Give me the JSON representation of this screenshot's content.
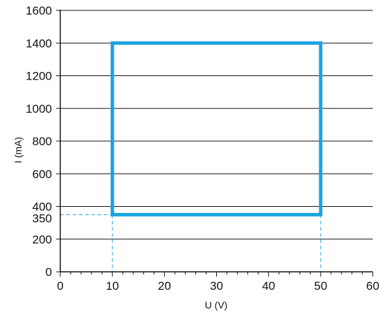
{
  "chart_data": {
    "type": "line",
    "xlabel": "U (V)",
    "ylabel": "I (mA)",
    "xlim": [
      0,
      60
    ],
    "ylim": [
      0,
      1600
    ],
    "x_ticks": [
      0,
      10,
      20,
      30,
      40,
      50,
      60
    ],
    "x_minor_step": 2,
    "y_ticks": [
      0,
      200,
      400,
      600,
      800,
      1000,
      1200,
      1400,
      1600
    ],
    "y_gridlines": [
      200,
      400,
      600,
      800,
      1000,
      1200,
      1400,
      1600
    ],
    "grid": "horizontal",
    "highlight_x": [
      10,
      50
    ],
    "highlight_y": [
      350,
      1400
    ],
    "series": [
      {
        "closed": true,
        "color": "#1aa3e0",
        "x": [
          10,
          50,
          50,
          10
        ],
        "y": [
          350,
          350,
          1400,
          1400
        ]
      }
    ],
    "reference_lines": {
      "color": "#1aa3e0",
      "style": "dashed",
      "horizontal_at": 350,
      "vertical_at": [
        10,
        50
      ]
    },
    "colors": {
      "axis": "#111111",
      "grid": "#111111",
      "highlight": "#1aa3e0"
    }
  }
}
